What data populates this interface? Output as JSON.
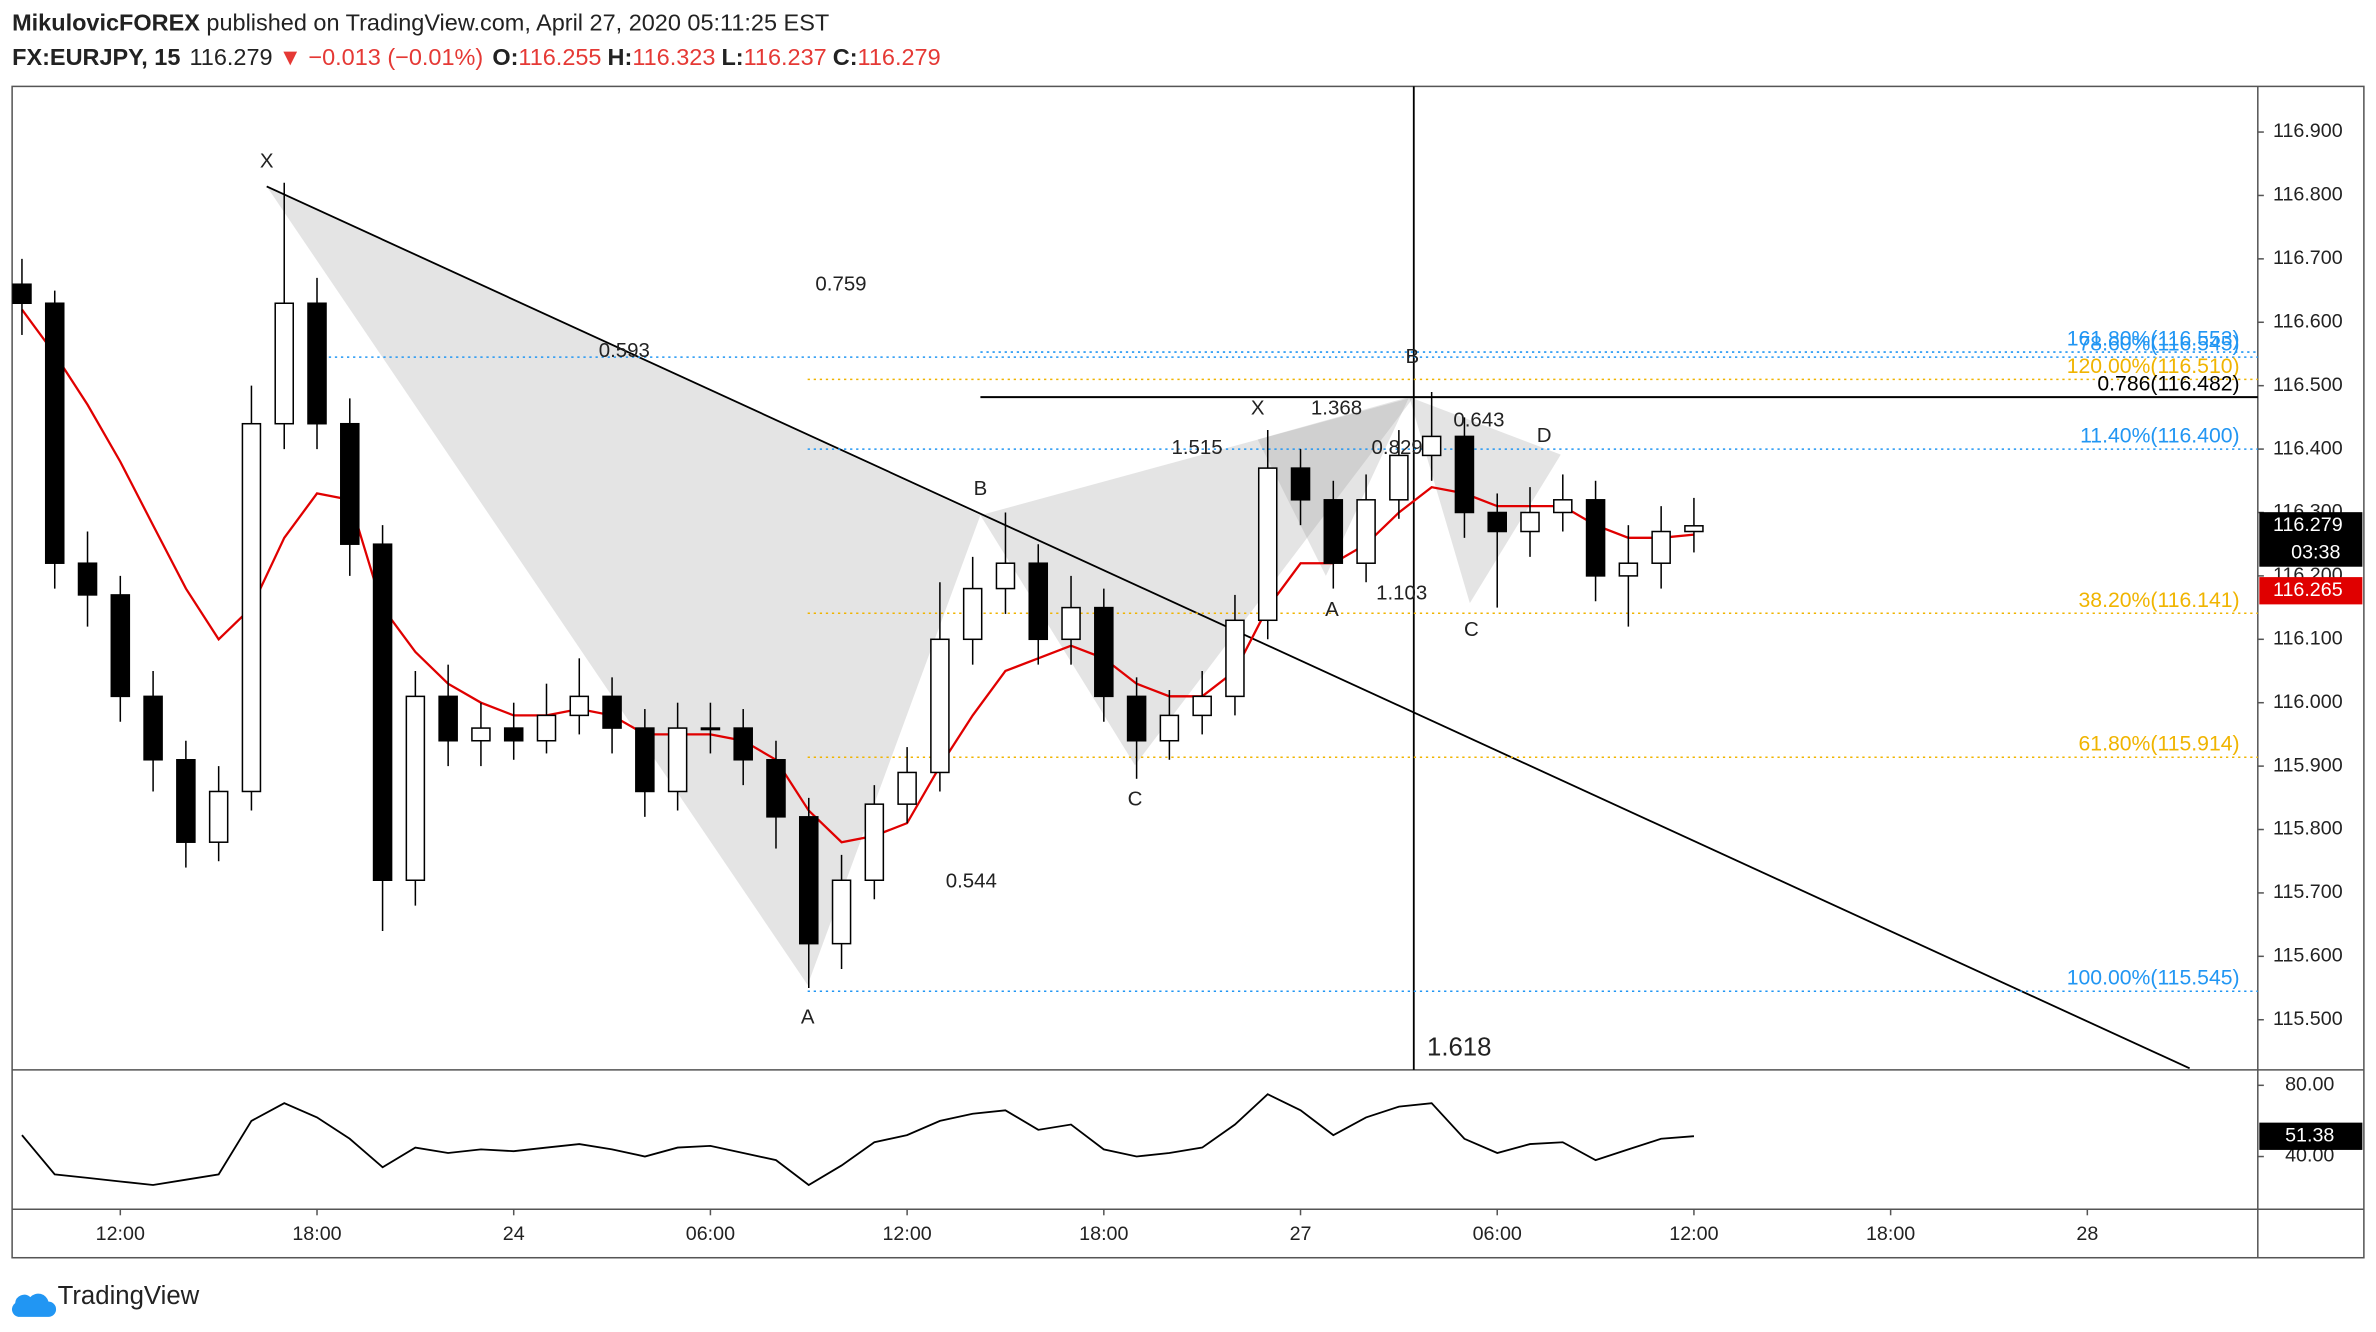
{
  "header": {
    "author": "MikulovicFOREX",
    "published": " published on TradingView.com, April 27, 2020 05:11:25 EST",
    "symbol": "FX:EURJPY, 15",
    "last": "116.279",
    "change": "▼ −0.013 (−0.01%)",
    "ohlc": [
      {
        "label": "O:",
        "value": 116.255
      },
      {
        "label": "H:",
        "value": 116.323
      },
      {
        "label": "L:",
        "value": 116.237
      },
      {
        "label": "C:",
        "value": 116.279
      }
    ]
  },
  "chart_data": {
    "type": "candlestick",
    "x": [
      -3,
      -2,
      -1,
      0,
      1,
      2,
      3,
      4,
      5,
      6,
      7,
      8,
      9,
      10,
      11,
      12,
      13,
      14,
      15,
      16,
      17,
      18,
      19,
      20,
      21,
      22,
      23,
      24,
      25,
      26,
      27,
      28,
      29,
      30,
      31,
      32,
      33,
      34,
      35,
      36,
      37,
      38,
      39,
      40,
      41,
      42,
      43,
      44,
      45,
      46,
      47,
      48
    ],
    "open": [
      116.66,
      116.63,
      116.22,
      116.17,
      116.01,
      115.91,
      115.78,
      115.86,
      116.44,
      116.63,
      116.44,
      116.25,
      115.72,
      116.01,
      115.94,
      115.96,
      115.94,
      115.98,
      116.01,
      115.96,
      115.86,
      115.96,
      115.96,
      115.91,
      115.82,
      115.62,
      115.72,
      115.84,
      115.89,
      116.1,
      116.18,
      116.22,
      116.1,
      116.15,
      116.01,
      115.94,
      115.98,
      116.01,
      116.13,
      116.37,
      116.32,
      116.22,
      116.32,
      116.39,
      116.42,
      116.3,
      116.27,
      116.3,
      116.32,
      116.2,
      116.22,
      116.27
    ],
    "high": [
      116.7,
      116.65,
      116.27,
      116.2,
      116.05,
      115.94,
      115.9,
      116.5,
      116.82,
      116.67,
      116.48,
      116.28,
      116.05,
      116.06,
      116.0,
      116.0,
      116.03,
      116.07,
      116.04,
      115.99,
      116.0,
      116.0,
      115.99,
      115.94,
      115.85,
      115.76,
      115.87,
      115.93,
      116.19,
      116.23,
      116.3,
      116.25,
      116.2,
      116.18,
      116.04,
      116.02,
      116.05,
      116.17,
      116.43,
      116.4,
      116.35,
      116.36,
      116.43,
      116.49,
      116.45,
      116.33,
      116.34,
      116.36,
      116.35,
      116.28,
      116.31,
      116.323
    ],
    "low": [
      116.58,
      116.18,
      116.12,
      115.97,
      115.86,
      115.74,
      115.75,
      115.83,
      116.4,
      116.4,
      116.2,
      115.64,
      115.68,
      115.9,
      115.9,
      115.91,
      115.92,
      115.95,
      115.92,
      115.82,
      115.83,
      115.92,
      115.87,
      115.77,
      115.55,
      115.58,
      115.69,
      115.81,
      115.86,
      116.06,
      116.14,
      116.06,
      116.06,
      115.97,
      115.88,
      115.91,
      115.95,
      115.98,
      116.1,
      116.28,
      116.18,
      116.19,
      116.29,
      116.35,
      116.26,
      116.15,
      116.23,
      116.27,
      116.16,
      116.12,
      116.18,
      116.237
    ],
    "close": [
      116.63,
      116.22,
      116.17,
      116.01,
      115.91,
      115.78,
      115.86,
      116.44,
      116.63,
      116.44,
      116.25,
      115.72,
      116.01,
      115.94,
      115.96,
      115.94,
      115.98,
      116.01,
      115.96,
      115.86,
      115.96,
      115.96,
      115.91,
      115.82,
      115.62,
      115.72,
      115.84,
      115.89,
      116.1,
      116.18,
      116.22,
      116.1,
      116.15,
      116.01,
      115.94,
      115.98,
      116.01,
      116.13,
      116.37,
      116.32,
      116.22,
      116.32,
      116.39,
      116.42,
      116.3,
      116.27,
      116.3,
      116.32,
      116.2,
      116.22,
      116.27,
      116.279
    ],
    "up_color": "#ffffff",
    "down_color": "#000000",
    "ma": {
      "color": "#e00000",
      "values": [
        116.62,
        116.55,
        116.47,
        116.38,
        116.28,
        116.18,
        116.1,
        116.15,
        116.26,
        116.33,
        116.32,
        116.15,
        116.08,
        116.03,
        116.0,
        115.98,
        115.98,
        115.99,
        115.98,
        115.95,
        115.95,
        115.95,
        115.94,
        115.91,
        115.83,
        115.78,
        115.79,
        115.81,
        115.9,
        115.98,
        116.05,
        116.07,
        116.09,
        116.07,
        116.03,
        116.01,
        116.01,
        116.05,
        116.15,
        116.22,
        116.22,
        116.25,
        116.3,
        116.34,
        116.33,
        116.31,
        116.31,
        116.31,
        116.28,
        116.26,
        116.26,
        116.265
      ]
    },
    "xlim": [
      -3.3,
      65.2
    ],
    "xticks": [
      {
        "value": 0,
        "label": "12:00"
      },
      {
        "value": 6,
        "label": "18:00"
      },
      {
        "value": 12,
        "label": "24"
      },
      {
        "value": 18,
        "label": "06:00"
      },
      {
        "value": 24,
        "label": "12:00"
      },
      {
        "value": 30,
        "label": "18:00"
      },
      {
        "value": 36,
        "label": "27"
      },
      {
        "value": 42,
        "label": "06:00"
      },
      {
        "value": 48,
        "label": "12:00"
      },
      {
        "value": 54,
        "label": "18:00"
      },
      {
        "value": 60,
        "label": "28"
      }
    ],
    "ylim": [
      115.421,
      116.972
    ],
    "yticks": [
      {
        "value": 115.5,
        "label": "115.500"
      },
      {
        "value": 115.6,
        "label": "115.600"
      },
      {
        "value": 115.7,
        "label": "115.700"
      },
      {
        "value": 115.8,
        "label": "115.800"
      },
      {
        "value": 115.9,
        "label": "115.900"
      },
      {
        "value": 116.0,
        "label": "116.000"
      },
      {
        "value": 116.1,
        "label": "116.100"
      },
      {
        "value": 116.2,
        "label": "116.200"
      },
      {
        "value": 116.3,
        "label": "116.300"
      },
      {
        "value": 116.4,
        "label": "116.400"
      },
      {
        "value": 116.5,
        "label": "116.500"
      },
      {
        "value": 116.6,
        "label": "116.600"
      },
      {
        "value": 116.7,
        "label": "116.700"
      },
      {
        "value": 116.8,
        "label": "116.800"
      },
      {
        "value": 116.9,
        "label": "116.900"
      }
    ],
    "last_price": 116.279,
    "countdown": "03:38",
    "ma_price": 116.265,
    "fib_levels": [
      {
        "label": "161.80%(116.553)",
        "value": 116.553,
        "color": "#2196f3"
      },
      {
        "label": "78.60%(116.545)",
        "value": 116.545,
        "color": "#2196f3"
      },
      {
        "label": "120.00%(116.510)",
        "value": 116.51,
        "color": "#f0b400"
      },
      {
        "label": "0.786(116.482)",
        "value": 116.482,
        "color": "#000000"
      },
      {
        "label": "11.40%(116.400)",
        "value": 116.4,
        "color": "#2196f3"
      },
      {
        "label": "38.20%(116.141)",
        "value": 116.141,
        "color": "#f0b400"
      },
      {
        "label": "61.80%(115.914)",
        "value": 115.914,
        "color": "#f0b400"
      },
      {
        "label": "100.00%(115.545)",
        "value": 115.545,
        "color": "#2196f3"
      }
    ],
    "annotations": [
      "X",
      "A",
      "B",
      "C",
      "X",
      "A",
      "B",
      "C",
      "D",
      "0.759",
      "0.593",
      "0.544",
      "1.515",
      "1.368",
      "0.829",
      "0.643",
      "1.103",
      "1.618"
    ],
    "rsi": {
      "color": "#000000",
      "values": [
        52,
        30,
        28,
        26,
        24,
        27,
        30,
        60,
        70,
        62,
        50,
        34,
        45,
        42,
        44,
        43,
        45,
        47,
        44,
        40,
        45,
        46,
        42,
        38,
        24,
        35,
        48,
        52,
        60,
        64,
        66,
        55,
        58,
        44,
        40,
        42,
        45,
        58,
        75,
        66,
        52,
        62,
        68,
        70,
        50,
        42,
        47,
        48,
        38,
        44,
        50,
        51.38
      ],
      "ylim": [
        10.4,
        88.7
      ],
      "yticks": [
        {
          "value": 80,
          "label": "80.00"
        },
        {
          "value": 40,
          "label": "40.00"
        }
      ]
    }
  },
  "footer": {
    "brand": "TradingView"
  }
}
